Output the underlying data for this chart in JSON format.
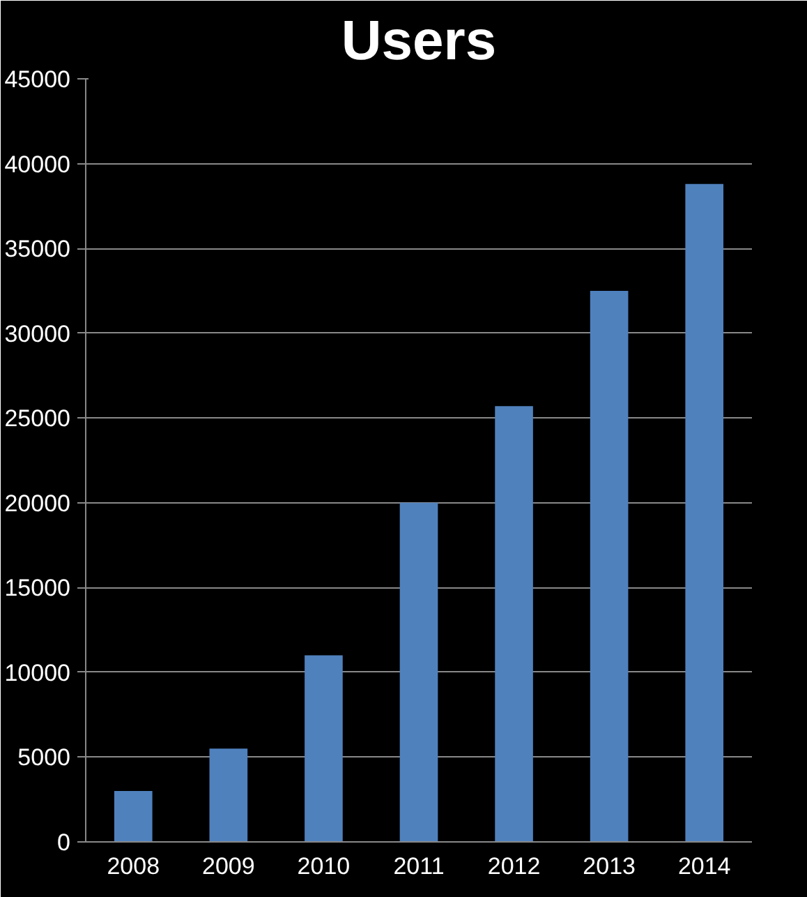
{
  "chart_data": {
    "type": "bar",
    "title": "Users",
    "categories": [
      "2008",
      "2009",
      "2010",
      "2011",
      "2012",
      "2013",
      "2014"
    ],
    "values": [
      3000,
      5500,
      11000,
      20000,
      25700,
      32500,
      38800
    ],
    "color": "#4f81bd",
    "ylim": [
      0,
      45000
    ],
    "yticks": [
      0,
      5000,
      10000,
      15000,
      20000,
      25000,
      30000,
      35000,
      40000,
      45000
    ],
    "grid": "y"
  }
}
